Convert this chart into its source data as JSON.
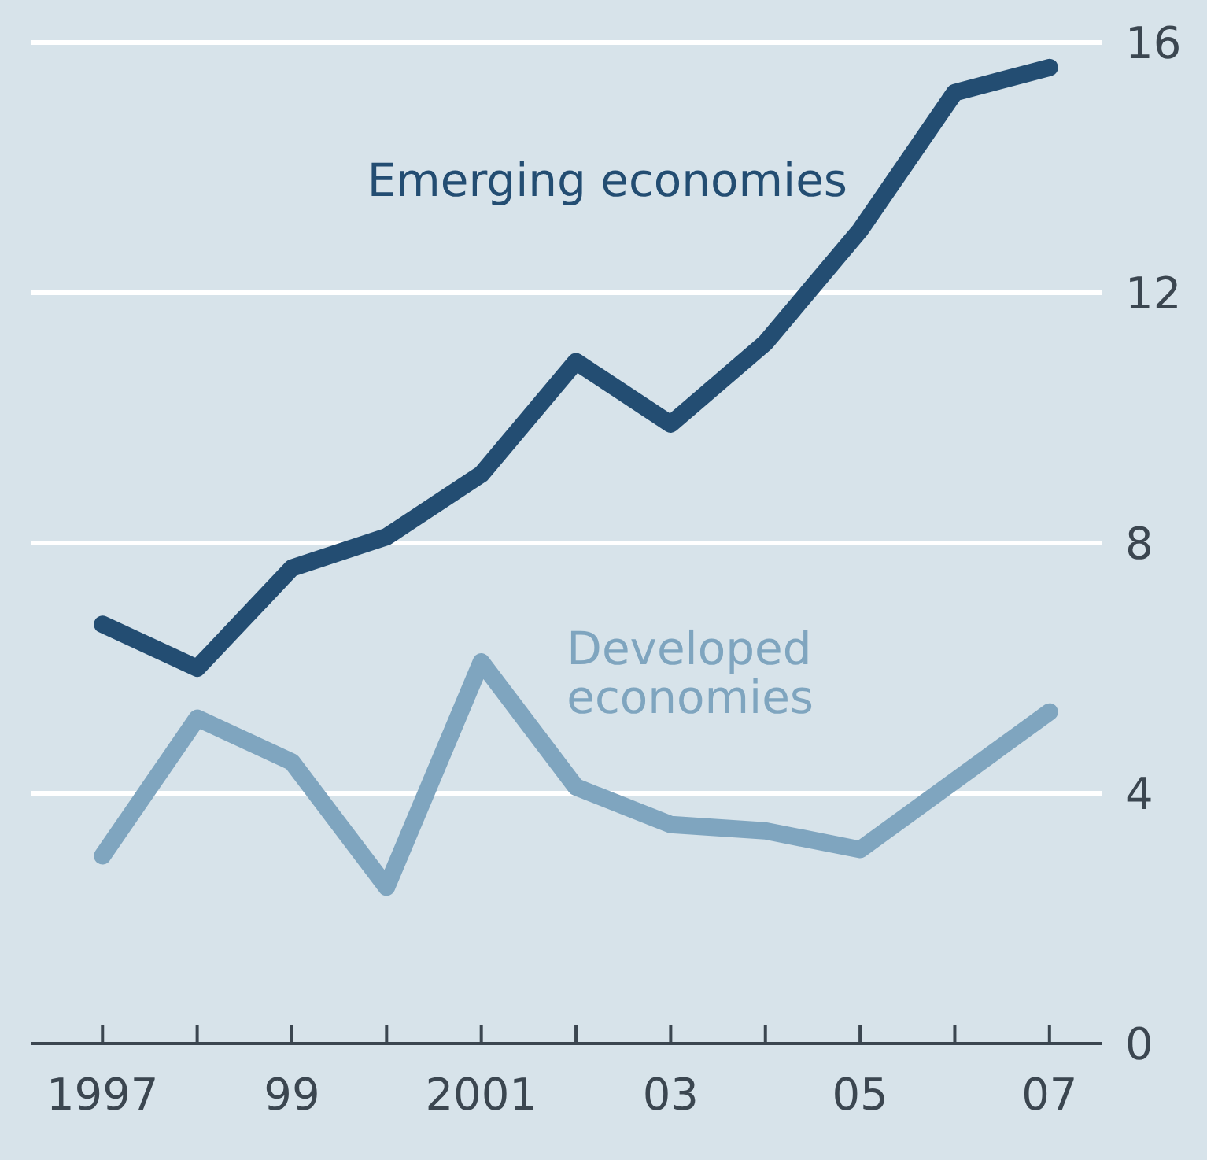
{
  "chart_data": {
    "type": "line",
    "x": [
      1997,
      1998,
      1999,
      2000,
      2001,
      2002,
      2003,
      2004,
      2005,
      2006,
      2007
    ],
    "series": [
      {
        "name": "Emerging economies",
        "color": "#234d72",
        "values": [
          6.7,
          6.0,
          7.6,
          8.1,
          9.1,
          10.9,
          9.9,
          11.2,
          13.0,
          15.2,
          15.6
        ]
      },
      {
        "name": "Developed economies",
        "color": "#7fa5bf",
        "values": [
          3.0,
          5.2,
          4.5,
          2.5,
          6.1,
          4.1,
          3.5,
          3.4,
          3.1,
          4.2,
          5.3
        ]
      }
    ],
    "xlim": [
      1996.25,
      2007.55
    ],
    "xticks": [
      1997,
      {
        "value": 1998,
        "label": null
      },
      {
        "value": 1999,
        "label": "99"
      },
      {
        "value": 2000,
        "label": null
      },
      2001,
      {
        "value": 2002,
        "label": null
      },
      {
        "value": 2003,
        "label": "03"
      },
      {
        "value": 2004,
        "label": null
      },
      {
        "value": 2005,
        "label": "05"
      },
      {
        "value": 2006,
        "label": null
      },
      {
        "value": 2007,
        "label": "07"
      }
    ],
    "ylim": [
      0,
      16
    ],
    "yticks": [
      0,
      4,
      8,
      12,
      16
    ],
    "grid": "y",
    "marker": "none",
    "line_style": "solid"
  }
}
